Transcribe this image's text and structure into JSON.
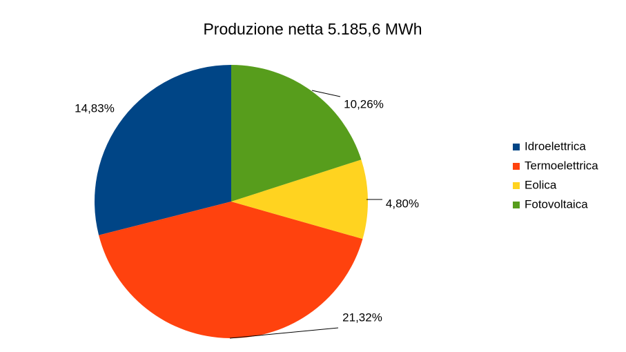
{
  "chart_data": {
    "type": "pie",
    "title": "Produzione netta 5.185,6 MWh",
    "categories": [
      "Idroelettrica",
      "Termoelettrica",
      "Eolica",
      "Fotovoltaica"
    ],
    "values": [
      14.83,
      21.32,
      4.8,
      10.26
    ],
    "value_labels": [
      "14,83%",
      "21,32%",
      "4,80%",
      "10,26%"
    ],
    "colors": [
      "#004586",
      "#ff420e",
      "#ffd320",
      "#579d1c"
    ],
    "legend": "right"
  }
}
